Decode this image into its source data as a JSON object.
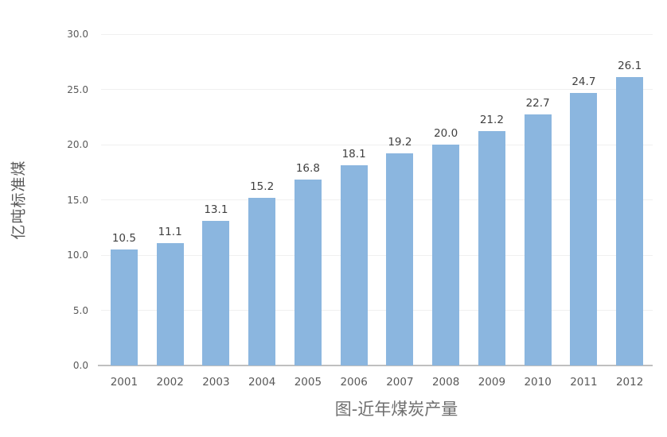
{
  "chart_data": {
    "type": "bar",
    "title": "图-近年煤炭产量",
    "ylabel": "亿吨标准煤",
    "xlabel": "",
    "categories": [
      "2001",
      "2002",
      "2003",
      "2004",
      "2005",
      "2006",
      "2007",
      "2008",
      "2009",
      "2010",
      "2011",
      "2012"
    ],
    "values": [
      10.5,
      11.1,
      13.1,
      15.2,
      16.8,
      18.1,
      19.2,
      20.0,
      21.2,
      22.7,
      24.7,
      26.1
    ],
    "data_labels": [
      "10.5",
      "11.1",
      "13.1",
      "15.2",
      "16.8",
      "18.1",
      "19.2",
      "20.0",
      "21.2",
      "22.7",
      "24.7",
      "26.1"
    ],
    "ylim": [
      0,
      30
    ],
    "yticks": [
      "0.0",
      "5.0",
      "10.0",
      "15.0",
      "20.0",
      "25.0",
      "30.0"
    ],
    "grid": true,
    "legend": false,
    "colors": {
      "bar": "#8bb6df",
      "gridline": "#f0f0f0",
      "axis_line": "#bfbfbf",
      "tick_label": "#595959",
      "data_label": "#404040",
      "title": "#6f6f6f"
    }
  }
}
